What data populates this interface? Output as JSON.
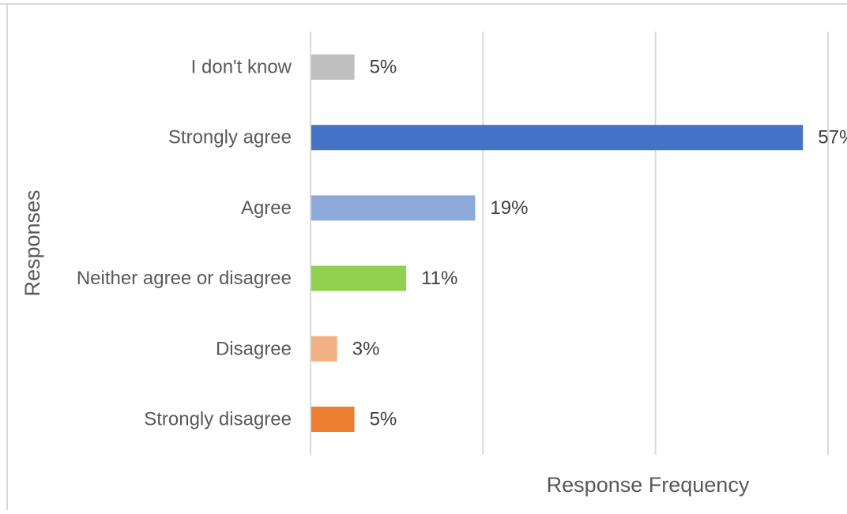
{
  "chart_data": {
    "type": "bar",
    "orientation": "horizontal",
    "title": "",
    "xlabel": "Response Frequency",
    "ylabel": "Responses",
    "categories": [
      "I don't know",
      "Strongly agree",
      "Agree",
      "Neither agree or disagree",
      "Disagree",
      "Strongly disagree"
    ],
    "values": [
      5,
      57,
      19,
      11,
      3,
      5
    ],
    "value_labels": [
      "5%",
      "57%",
      "19%",
      "11%",
      "3%",
      "5%"
    ],
    "colors": [
      "#bfbfbf",
      "#4472c4",
      "#8eaadb",
      "#92d050",
      "#f4b183",
      "#ed7d31"
    ],
    "xlim": [
      0,
      60
    ],
    "grid": true,
    "show_x_tick_labels": false,
    "legend": "none"
  }
}
